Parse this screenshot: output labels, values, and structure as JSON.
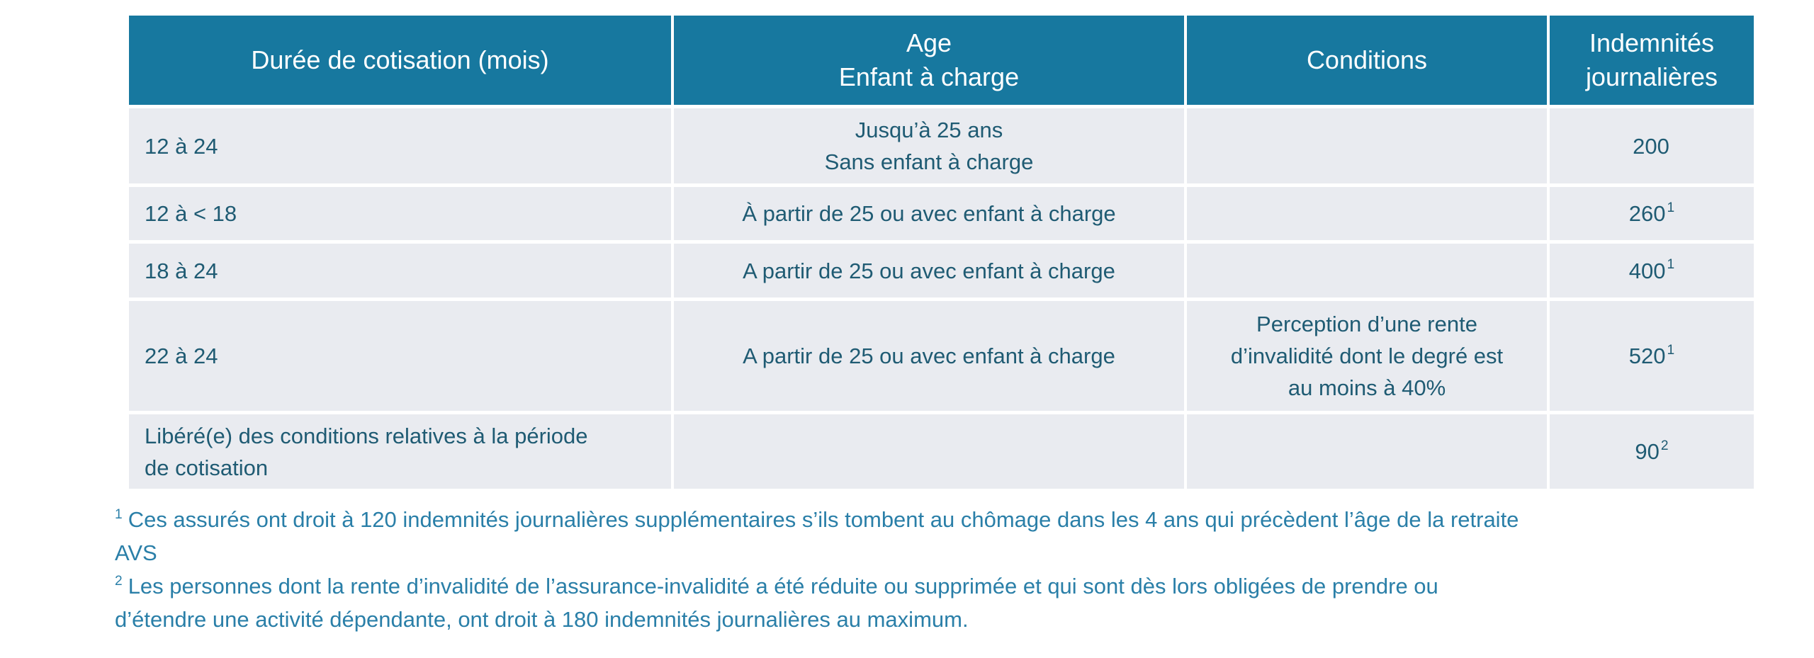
{
  "colors": {
    "header_bg": "#17789F",
    "header_text": "#FFFFFF",
    "cell_bg": "#E9EBF0",
    "cell_text": "#1F5B73",
    "footnote_text": "#2A7FA8",
    "page_bg": "#FFFFFF"
  },
  "table": {
    "headers": {
      "duration": {
        "lines": [
          "Durée de cotisation (mois)"
        ]
      },
      "age": {
        "lines": [
          "Age",
          "Enfant à charge"
        ]
      },
      "conditions": {
        "lines": [
          "Conditions"
        ]
      },
      "indemnites": {
        "lines": [
          "Indemnités",
          "journalières"
        ]
      }
    },
    "rows": [
      {
        "duration": [
          "12 à 24"
        ],
        "age": [
          "Jusqu’à 25 ans",
          "Sans enfant à charge"
        ],
        "conditions": [],
        "indemnite": {
          "value": "200",
          "sup": ""
        }
      },
      {
        "duration": [
          "12 à < 18"
        ],
        "age": [
          "À partir de 25 ou avec enfant à charge"
        ],
        "conditions": [],
        "indemnite": {
          "value": "260",
          "sup": "1"
        }
      },
      {
        "duration": [
          "18 à 24"
        ],
        "age": [
          "A partir de 25 ou avec enfant à charge"
        ],
        "conditions": [],
        "indemnite": {
          "value": "400",
          "sup": "1"
        }
      },
      {
        "duration": [
          "22 à 24"
        ],
        "age": [
          "A partir de 25 ou avec enfant à charge"
        ],
        "conditions": [
          "Perception d’une rente",
          "d’invalidité dont le degré est",
          "au moins à 40%"
        ],
        "indemnite": {
          "value": "520",
          "sup": "1"
        }
      },
      {
        "duration": [
          "Libéré(e) des conditions relatives à la période",
          "de cotisation"
        ],
        "age": [],
        "conditions": [],
        "indemnite": {
          "value": "90",
          "sup": "2"
        }
      }
    ]
  },
  "footnotes": [
    {
      "marker": "1",
      "lines": [
        "Ces assurés ont droit à 120 indemnités journalières supplémentaires s’ils tombent au chômage dans les 4 ans qui précèdent l’âge de la retraite",
        "AVS"
      ]
    },
    {
      "marker": "2",
      "lines": [
        "Les personnes dont la rente d’invalidité de l’assurance-invalidité a été réduite ou supprimée et qui sont dès lors obligées de prendre ou",
        "d’étendre une activité dépendante, ont droit à 180 indemnités journalières au maximum."
      ]
    }
  ]
}
